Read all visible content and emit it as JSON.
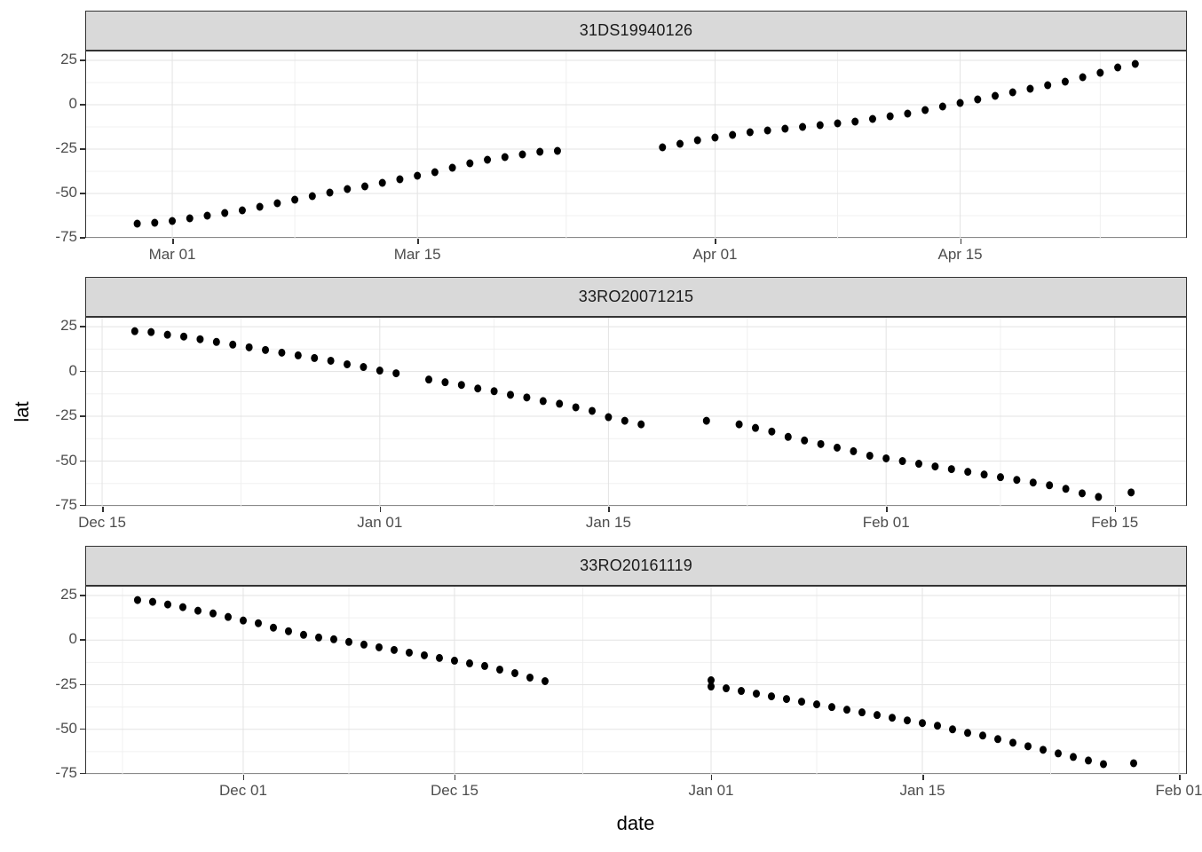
{
  "axis": {
    "x_title": "date",
    "y_title": "lat"
  },
  "style": {
    "background": "#ffffff",
    "strip_fill": "#d9d9d9",
    "panel_border": "#333333",
    "grid_major": "#e3e3e3",
    "grid_minor": "#f0f0f0",
    "tick_color": "#333333",
    "tick_label_color": "#4d4d4d",
    "point_color": "#000000"
  },
  "chart_data": {
    "type": "scatter",
    "title": "",
    "xlabel": "date",
    "ylabel": "lat",
    "ylim": [
      -75.5,
      30
    ],
    "grid": "on",
    "legend": "none",
    "y_ticks": [
      {
        "value": 25,
        "label": "25"
      },
      {
        "value": 0,
        "label": "0"
      },
      {
        "value": -25,
        "label": "-25"
      },
      {
        "value": -50,
        "label": "-50"
      },
      {
        "value": -75,
        "label": "-75"
      }
    ],
    "y_minor": [
      12.5,
      -12.5,
      -37.5,
      -62.5
    ],
    "facets": [
      {
        "title": "31DS19940126",
        "x_domain": [
          -4.92,
          57.9
        ],
        "x_ticks": [
          {
            "day": 0,
            "label": "Mar 01"
          },
          {
            "day": 14,
            "label": "Mar 15"
          },
          {
            "day": 31,
            "label": "Apr 01"
          },
          {
            "day": 45,
            "label": "Apr 15"
          }
        ],
        "x_minor": [
          7,
          22.5,
          38,
          53
        ],
        "points": [
          [
            -2,
            -67
          ],
          [
            -1,
            -66.5
          ],
          [
            0,
            -65.5
          ],
          [
            1,
            -64
          ],
          [
            2,
            -62.5
          ],
          [
            3,
            -61
          ],
          [
            4,
            -59.5
          ],
          [
            5,
            -57.5
          ],
          [
            6,
            -55.5
          ],
          [
            7,
            -53.5
          ],
          [
            8,
            -51.5
          ],
          [
            9,
            -49.5
          ],
          [
            10,
            -47.5
          ],
          [
            11,
            -46
          ],
          [
            12,
            -44
          ],
          [
            13,
            -42
          ],
          [
            14,
            -40
          ],
          [
            15,
            -38
          ],
          [
            16,
            -35.5
          ],
          [
            17,
            -33
          ],
          [
            18,
            -31
          ],
          [
            19,
            -29.5
          ],
          [
            20,
            -28
          ],
          [
            21,
            -26.5
          ],
          [
            22,
            -26
          ],
          [
            28,
            -24
          ],
          [
            29,
            -22
          ],
          [
            30,
            -20
          ],
          [
            31,
            -18.5
          ],
          [
            32,
            -17
          ],
          [
            33,
            -15.5
          ],
          [
            34,
            -14.5
          ],
          [
            35,
            -13.5
          ],
          [
            36,
            -12.5
          ],
          [
            37,
            -11.5
          ],
          [
            38,
            -10.5
          ],
          [
            39,
            -9.5
          ],
          [
            40,
            -8
          ],
          [
            41,
            -6.5
          ],
          [
            42,
            -5
          ],
          [
            43,
            -3
          ],
          [
            44,
            -1
          ],
          [
            45,
            1
          ],
          [
            46,
            3
          ],
          [
            47,
            5
          ],
          [
            48,
            7
          ],
          [
            49,
            9
          ],
          [
            50,
            11
          ],
          [
            51,
            13
          ],
          [
            52,
            15.5
          ],
          [
            53,
            18
          ],
          [
            54,
            21
          ],
          [
            55,
            23
          ]
        ]
      },
      {
        "title": "33RO20071215",
        "x_domain": [
          -0.98,
          66.36
        ],
        "x_ticks": [
          {
            "day": 0,
            "label": "Dec 15"
          },
          {
            "day": 17,
            "label": "Jan 01"
          },
          {
            "day": 31,
            "label": "Jan 15"
          },
          {
            "day": 48,
            "label": "Feb 01"
          },
          {
            "day": 62,
            "label": "Feb 15"
          }
        ],
        "x_minor": [
          8.5,
          24,
          39.5,
          55
        ],
        "points": [
          [
            2,
            22.5
          ],
          [
            3,
            22
          ],
          [
            4,
            20.5
          ],
          [
            5,
            19.5
          ],
          [
            6,
            18
          ],
          [
            7,
            16.5
          ],
          [
            8,
            15
          ],
          [
            9,
            13.5
          ],
          [
            10,
            12
          ],
          [
            11,
            10.5
          ],
          [
            12,
            9
          ],
          [
            13,
            7.5
          ],
          [
            14,
            6
          ],
          [
            15,
            4
          ],
          [
            16,
            2.5
          ],
          [
            17,
            0.5
          ],
          [
            18,
            -1
          ],
          [
            20,
            -4.5
          ],
          [
            21,
            -6
          ],
          [
            22,
            -7.5
          ],
          [
            23,
            -9.5
          ],
          [
            24,
            -11
          ],
          [
            25,
            -13
          ],
          [
            26,
            -14.5
          ],
          [
            27,
            -16.5
          ],
          [
            28,
            -18
          ],
          [
            29,
            -20
          ],
          [
            30,
            -22
          ],
          [
            31,
            -25.5
          ],
          [
            32,
            -27.5
          ],
          [
            33,
            -29.5
          ],
          [
            37,
            -27.5
          ],
          [
            39,
            -29.5
          ],
          [
            40,
            -31.5
          ],
          [
            41,
            -33.5
          ],
          [
            42,
            -36.5
          ],
          [
            43,
            -38.5
          ],
          [
            44,
            -40.5
          ],
          [
            45,
            -42.5
          ],
          [
            46,
            -44.5
          ],
          [
            47,
            -47
          ],
          [
            48,
            -48.5
          ],
          [
            49,
            -50
          ],
          [
            50,
            -51.5
          ],
          [
            51,
            -53
          ],
          [
            52,
            -54.5
          ],
          [
            53,
            -56
          ],
          [
            54,
            -57.5
          ],
          [
            55,
            -59
          ],
          [
            56,
            -60.5
          ],
          [
            57,
            -62
          ],
          [
            58,
            -63.5
          ],
          [
            59,
            -65.5
          ],
          [
            60,
            -68
          ],
          [
            61,
            -70
          ],
          [
            63,
            -67.5
          ]
        ]
      },
      {
        "title": "33RO20161119",
        "x_domain": [
          -10.41,
          62.47
        ],
        "x_ticks": [
          {
            "day": 0,
            "label": "Dec 01"
          },
          {
            "day": 14,
            "label": "Dec 15"
          },
          {
            "day": 31,
            "label": "Jan 01"
          },
          {
            "day": 45,
            "label": "Jan 15"
          },
          {
            "day": 62,
            "label": "Feb 01"
          }
        ],
        "x_minor": [
          -8,
          7,
          22.5,
          38,
          53.5
        ],
        "points": [
          [
            -7,
            22.5
          ],
          [
            -6,
            21.5
          ],
          [
            -5,
            20
          ],
          [
            -4,
            18.5
          ],
          [
            -3,
            16.5
          ],
          [
            -2,
            15
          ],
          [
            -1,
            13
          ],
          [
            0,
            11
          ],
          [
            1,
            9.5
          ],
          [
            2,
            7
          ],
          [
            3,
            5
          ],
          [
            4,
            3
          ],
          [
            5,
            1.5
          ],
          [
            6,
            0.5
          ],
          [
            7,
            -1
          ],
          [
            8,
            -2.5
          ],
          [
            9,
            -4
          ],
          [
            10,
            -5.5
          ],
          [
            11,
            -7
          ],
          [
            12,
            -8.5
          ],
          [
            13,
            -10
          ],
          [
            14,
            -11.5
          ],
          [
            15,
            -13
          ],
          [
            16,
            -14.5
          ],
          [
            17,
            -16.5
          ],
          [
            18,
            -18.5
          ],
          [
            19,
            -21
          ],
          [
            20,
            -23
          ],
          [
            31,
            -22.5
          ],
          [
            31,
            -26
          ],
          [
            32,
            -27
          ],
          [
            33,
            -28.5
          ],
          [
            34,
            -30
          ],
          [
            35,
            -31.5
          ],
          [
            36,
            -33
          ],
          [
            37,
            -34.5
          ],
          [
            38,
            -36
          ],
          [
            39,
            -37.5
          ],
          [
            40,
            -39
          ],
          [
            41,
            -40.5
          ],
          [
            42,
            -42
          ],
          [
            43,
            -43.5
          ],
          [
            44,
            -45
          ],
          [
            45,
            -46.5
          ],
          [
            46,
            -48
          ],
          [
            47,
            -50
          ],
          [
            48,
            -52
          ],
          [
            49,
            -53.5
          ],
          [
            50,
            -55.5
          ],
          [
            51,
            -57.5
          ],
          [
            52,
            -59.5
          ],
          [
            53,
            -61.5
          ],
          [
            54,
            -63.5
          ],
          [
            55,
            -65.5
          ],
          [
            56,
            -67.5
          ],
          [
            57,
            -69.5
          ],
          [
            59,
            -69
          ]
        ]
      }
    ]
  }
}
